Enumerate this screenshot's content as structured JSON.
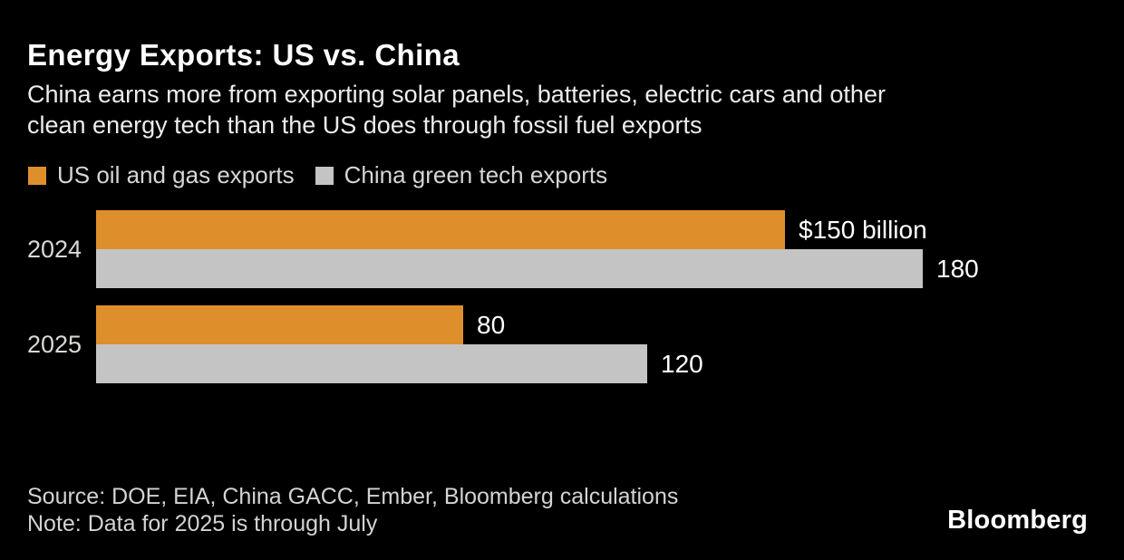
{
  "header": {
    "title": "Energy Exports: US vs. China",
    "subtitle_lines": [
      "China earns more from exporting solar panels, batteries, electric cars and other",
      "clean energy tech than the US does through fossil fuel exports"
    ]
  },
  "legend": {
    "items": [
      {
        "id": "us-oil-gas",
        "label": "US oil and gas exports",
        "color": "#de8f2c"
      },
      {
        "id": "china-green-tech",
        "label": "China green tech exports",
        "color": "#c4c4c4"
      }
    ]
  },
  "chart_data": {
    "type": "bar",
    "orientation": "horizontal",
    "title": "Energy Exports: US vs. China",
    "subtitle": "China earns more from exporting solar panels, batteries, electric cars and other clean energy tech than the US does through fossil fuel exports",
    "categories": [
      "2024",
      "2025"
    ],
    "series": [
      {
        "id": "us-oil-gas",
        "name": "US oil and gas exports",
        "color": "#de8f2c",
        "values": [
          150,
          80
        ],
        "value_labels": [
          "$150 billion",
          "80"
        ]
      },
      {
        "id": "china-green-tech",
        "name": "China green tech exports",
        "color": "#c4c4c4",
        "values": [
          180,
          120
        ],
        "value_labels": [
          "180",
          "120"
        ]
      }
    ],
    "xlim": [
      0,
      180
    ],
    "grid": false,
    "legend_position": "top",
    "background": "#000000"
  },
  "footer": {
    "source": "Source: DOE, EIA, China GACC, Ember, Bloomberg calculations",
    "note": "Note: Data for 2025 is through July",
    "brand": "Bloomberg"
  },
  "colors": {
    "background": "#000000",
    "title_text": "#ffffff",
    "muted_text": "#d3d3d1",
    "us_series": "#de8f2c",
    "china_series": "#c4c4c4"
  }
}
